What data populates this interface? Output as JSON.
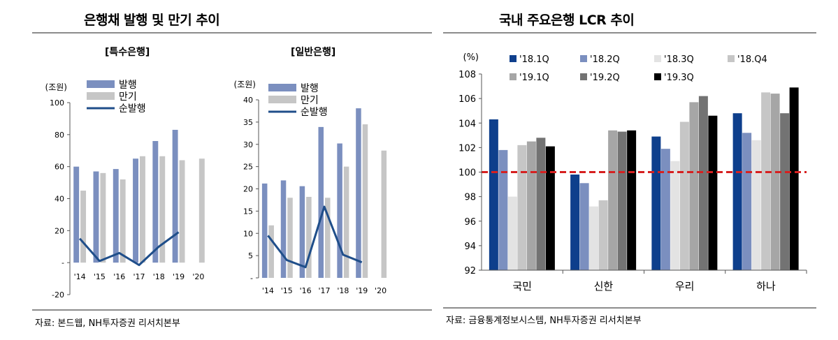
{
  "left_panel": {
    "title": "은행채 발행 및 만기 추이",
    "source": "자료: 본드웹, NH투자증권 리서치본부"
  },
  "right_panel": {
    "title": "국내 주요은행 LCR 추이",
    "source": "자료: 금융통계정보시스템, NH투자증권 리서치본부"
  },
  "colors": {
    "issuance": "#7b8fbf",
    "maturity": "#c6c6c6",
    "net": "#1f4e8a",
    "threshold": "#d62020",
    "lcr": [
      "#0e3f8c",
      "#7b8fbf",
      "#e3e3e3",
      "#c6c6c6",
      "#a6a6a6",
      "#737373",
      "#000000"
    ]
  },
  "chart_data": [
    {
      "type": "bar",
      "title": "[특수은행]",
      "unit_label": "(조원)",
      "categories": [
        "'14",
        "'15",
        "'16",
        "'17",
        "'18",
        "'19",
        "'20"
      ],
      "ylim": [
        -20,
        100
      ],
      "yticks": [
        "-20",
        "-",
        "20",
        "40",
        "60",
        "80",
        "100"
      ],
      "series": [
        {
          "name": "발행",
          "type": "bar",
          "values": [
            60,
            57,
            58.5,
            65,
            76,
            83,
            null
          ]
        },
        {
          "name": "만기",
          "type": "bar",
          "values": [
            45,
            56,
            52,
            66.5,
            66.5,
            64,
            65
          ]
        },
        {
          "name": "순발행",
          "type": "line",
          "values": [
            15,
            1,
            6,
            -1.5,
            10,
            19,
            null
          ]
        }
      ],
      "legend": "top-center"
    },
    {
      "type": "bar",
      "title": "[일반은행]",
      "unit_label": "(조원)",
      "categories": [
        "'14",
        "'15",
        "'16",
        "'17",
        "'18",
        "'19",
        "'20"
      ],
      "ylim": [
        0,
        40
      ],
      "yticks": [
        "-",
        "5",
        "10",
        "15",
        "20",
        "25",
        "30",
        "35",
        "40"
      ],
      "series": [
        {
          "name": "발행",
          "type": "bar",
          "values": [
            21.2,
            21.9,
            20.6,
            33.9,
            30.2,
            38.1,
            null
          ]
        },
        {
          "name": "만기",
          "type": "bar",
          "values": [
            11.8,
            18,
            18.2,
            18,
            25,
            34.5,
            28.6
          ]
        },
        {
          "name": "순발행",
          "type": "line",
          "values": [
            9.5,
            4,
            2.4,
            16,
            5.2,
            3.5,
            null
          ]
        }
      ],
      "legend": "top-center"
    },
    {
      "type": "bar",
      "title": "",
      "unit_label": "(%)",
      "categories": [
        "국민",
        "신한",
        "우리",
        "하나"
      ],
      "ylim": [
        92,
        108
      ],
      "yticks": [
        "92",
        "94",
        "96",
        "98",
        "100",
        "102",
        "104",
        "106",
        "108"
      ],
      "reference_line": 100,
      "series": [
        {
          "name": "'18.1Q",
          "values": [
            104.3,
            99.8,
            102.9,
            104.8
          ]
        },
        {
          "name": "'18.2Q",
          "values": [
            101.8,
            99.1,
            101.9,
            103.2
          ]
        },
        {
          "name": "'18.3Q",
          "values": [
            98,
            97.2,
            100.9,
            102.6
          ]
        },
        {
          "name": "'18.Q4",
          "values": [
            102.2,
            97.7,
            104.1,
            106.5
          ]
        },
        {
          "name": "'19.1Q",
          "values": [
            102.5,
            103.4,
            105.7,
            106.4
          ]
        },
        {
          "name": "'19.2Q",
          "values": [
            102.8,
            103.3,
            106.2,
            104.8
          ]
        },
        {
          "name": "'19.3Q",
          "values": [
            102.1,
            103.4,
            104.6,
            106.9
          ]
        }
      ],
      "legend": "top-left"
    }
  ]
}
